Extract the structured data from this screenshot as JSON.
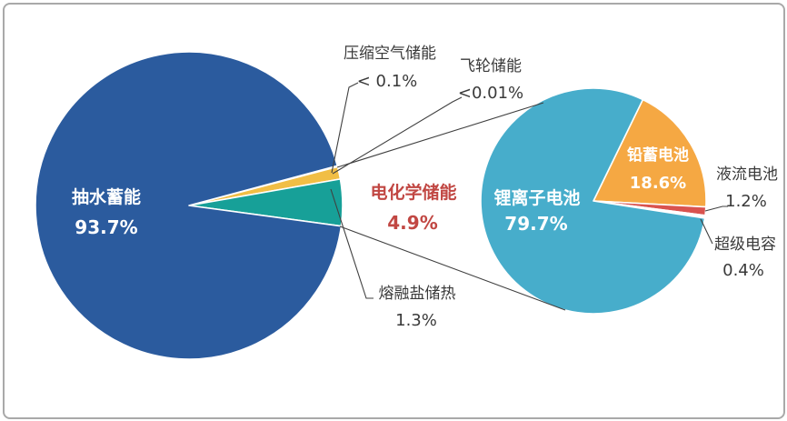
{
  "frame": {
    "background": "#FFFFFF",
    "border_color": "#A9A9A9"
  },
  "colors": {
    "label_text": "#3A3A3A",
    "highlight_text": "#C14743",
    "in_pie_text": "#FFFFFF",
    "leader_line": "#404040",
    "slice_border": "#FFFFFF"
  },
  "chart_data": [
    {
      "type": "pie",
      "name": "energy-storage-overall-pie",
      "start_angle_deg": -15,
      "legend": "none",
      "slices": [
        {
          "id": "compressed-air",
          "label": "压缩空气储能",
          "display": "< 0.1%",
          "value": 0.1,
          "color": "#9FB6D4"
        },
        {
          "id": "flywheel",
          "label": "飞轮储能",
          "display": "<0.01%",
          "value": 0.01,
          "color": "#9FB6D4"
        },
        {
          "id": "molten-salt",
          "label": "熔融盐储热",
          "display": "1.3%",
          "value": 1.3,
          "color": "#F1BE45"
        },
        {
          "id": "electrochemical",
          "label": "电化学储能",
          "display": "4.9%",
          "value": 4.9,
          "color": "#17A098"
        },
        {
          "id": "pumped-hydro",
          "label": "抽水蓄能",
          "display": "93.7%",
          "value": 93.7,
          "color": "#2B5B9E"
        }
      ]
    },
    {
      "type": "pie",
      "name": "electrochemical-breakdown-pie",
      "start_angle_deg": -64,
      "legend": "none",
      "slices": [
        {
          "id": "lead-acid",
          "label": "铅蓄电池",
          "display": "18.6%",
          "value": 18.6,
          "color": "#F5A843"
        },
        {
          "id": "flow-battery",
          "label": "液流电池",
          "display": "1.2%",
          "value": 1.2,
          "color": "#D9534F"
        },
        {
          "id": "supercapacitor",
          "label": "超级电容",
          "display": "0.4%",
          "value": 0.4,
          "color": "#FFFFFF"
        },
        {
          "id": "lithium-ion",
          "label": "锂离子电池",
          "display": "79.7%",
          "value": 79.7,
          "color": "#47ADCB"
        }
      ]
    }
  ]
}
